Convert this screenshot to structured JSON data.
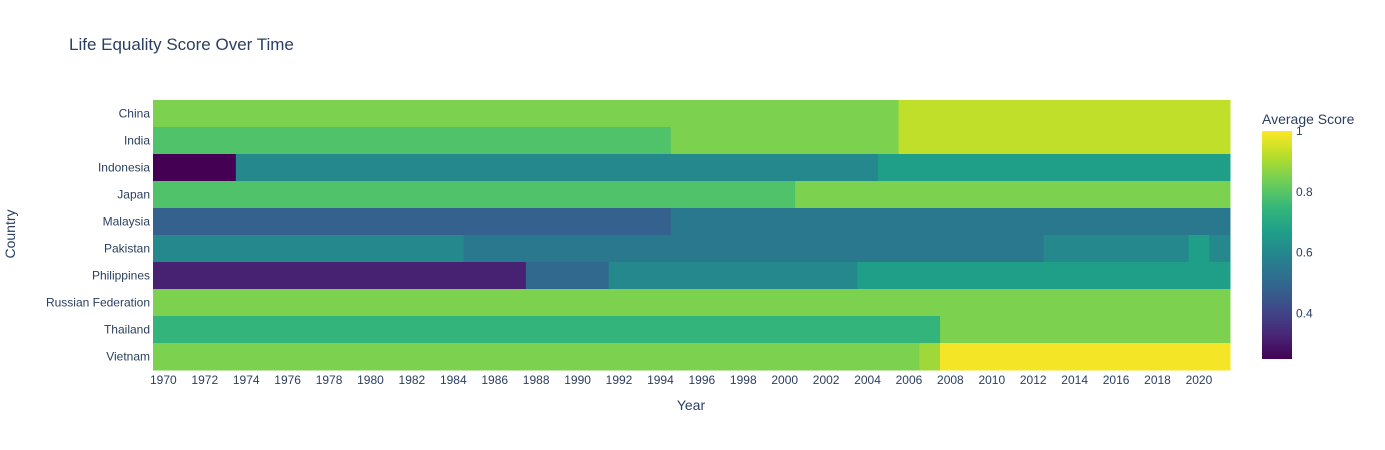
{
  "chart_data": {
    "type": "heatmap",
    "title": "Life Equality Score Over Time",
    "xlabel": "Year",
    "ylabel": "Country",
    "colorbar_title": "Average Score",
    "colorbar_ticks": [
      "0.4",
      "0.6",
      "0.8",
      "1"
    ],
    "colorbar_tick_values": [
      0.4,
      0.6,
      0.8,
      1.0
    ],
    "zmin": 0.25,
    "zmax": 1.0,
    "colorscale": "Viridis",
    "x_range": [
      1970,
      2021
    ],
    "x_ticks": [
      "1970",
      "1972",
      "1974",
      "1976",
      "1978",
      "1980",
      "1982",
      "1984",
      "1986",
      "1988",
      "1990",
      "1992",
      "1994",
      "1996",
      "1998",
      "2000",
      "2002",
      "2004",
      "2006",
      "2008",
      "2010",
      "2012",
      "2014",
      "2016",
      "2018",
      "2020"
    ],
    "countries": [
      "China",
      "India",
      "Indonesia",
      "Japan",
      "Malaysia",
      "Pakistan",
      "Philippines",
      "Russian Federation",
      "Thailand",
      "Vietnam"
    ],
    "rows": [
      {
        "country": "China",
        "segments": [
          [
            1970,
            2005,
            0.85
          ],
          [
            2006,
            2021,
            0.93
          ]
        ]
      },
      {
        "country": "India",
        "segments": [
          [
            1970,
            1994,
            0.79
          ],
          [
            1995,
            2005,
            0.85
          ],
          [
            2006,
            2021,
            0.93
          ]
        ]
      },
      {
        "country": "Indonesia",
        "segments": [
          [
            1970,
            1973,
            0.25
          ],
          [
            1974,
            2004,
            0.6
          ],
          [
            2005,
            2021,
            0.67
          ]
        ]
      },
      {
        "country": "Japan",
        "segments": [
          [
            1970,
            2000,
            0.79
          ],
          [
            2001,
            2021,
            0.85
          ]
        ]
      },
      {
        "country": "Malaysia",
        "segments": [
          [
            1970,
            1994,
            0.48
          ],
          [
            1995,
            2021,
            0.55
          ]
        ]
      },
      {
        "country": "Pakistan",
        "segments": [
          [
            1970,
            1984,
            0.6
          ],
          [
            1985,
            2012,
            0.55
          ],
          [
            2013,
            2019,
            0.6
          ],
          [
            2020,
            2020,
            0.67
          ],
          [
            2021,
            2021,
            0.6
          ]
        ]
      },
      {
        "country": "Philippines",
        "segments": [
          [
            1970,
            1987,
            0.32
          ],
          [
            1988,
            1991,
            0.5
          ],
          [
            1992,
            2003,
            0.6
          ],
          [
            2004,
            2021,
            0.67
          ]
        ]
      },
      {
        "country": "Russian Federation",
        "segments": [
          [
            1970,
            2021,
            0.85
          ]
        ]
      },
      {
        "country": "Thailand",
        "segments": [
          [
            1970,
            2007,
            0.74
          ],
          [
            2008,
            2021,
            0.85
          ]
        ]
      },
      {
        "country": "Vietnam",
        "segments": [
          [
            1970,
            2006,
            0.85
          ],
          [
            2007,
            2007,
            0.89
          ],
          [
            2008,
            2021,
            0.99
          ]
        ]
      }
    ]
  }
}
